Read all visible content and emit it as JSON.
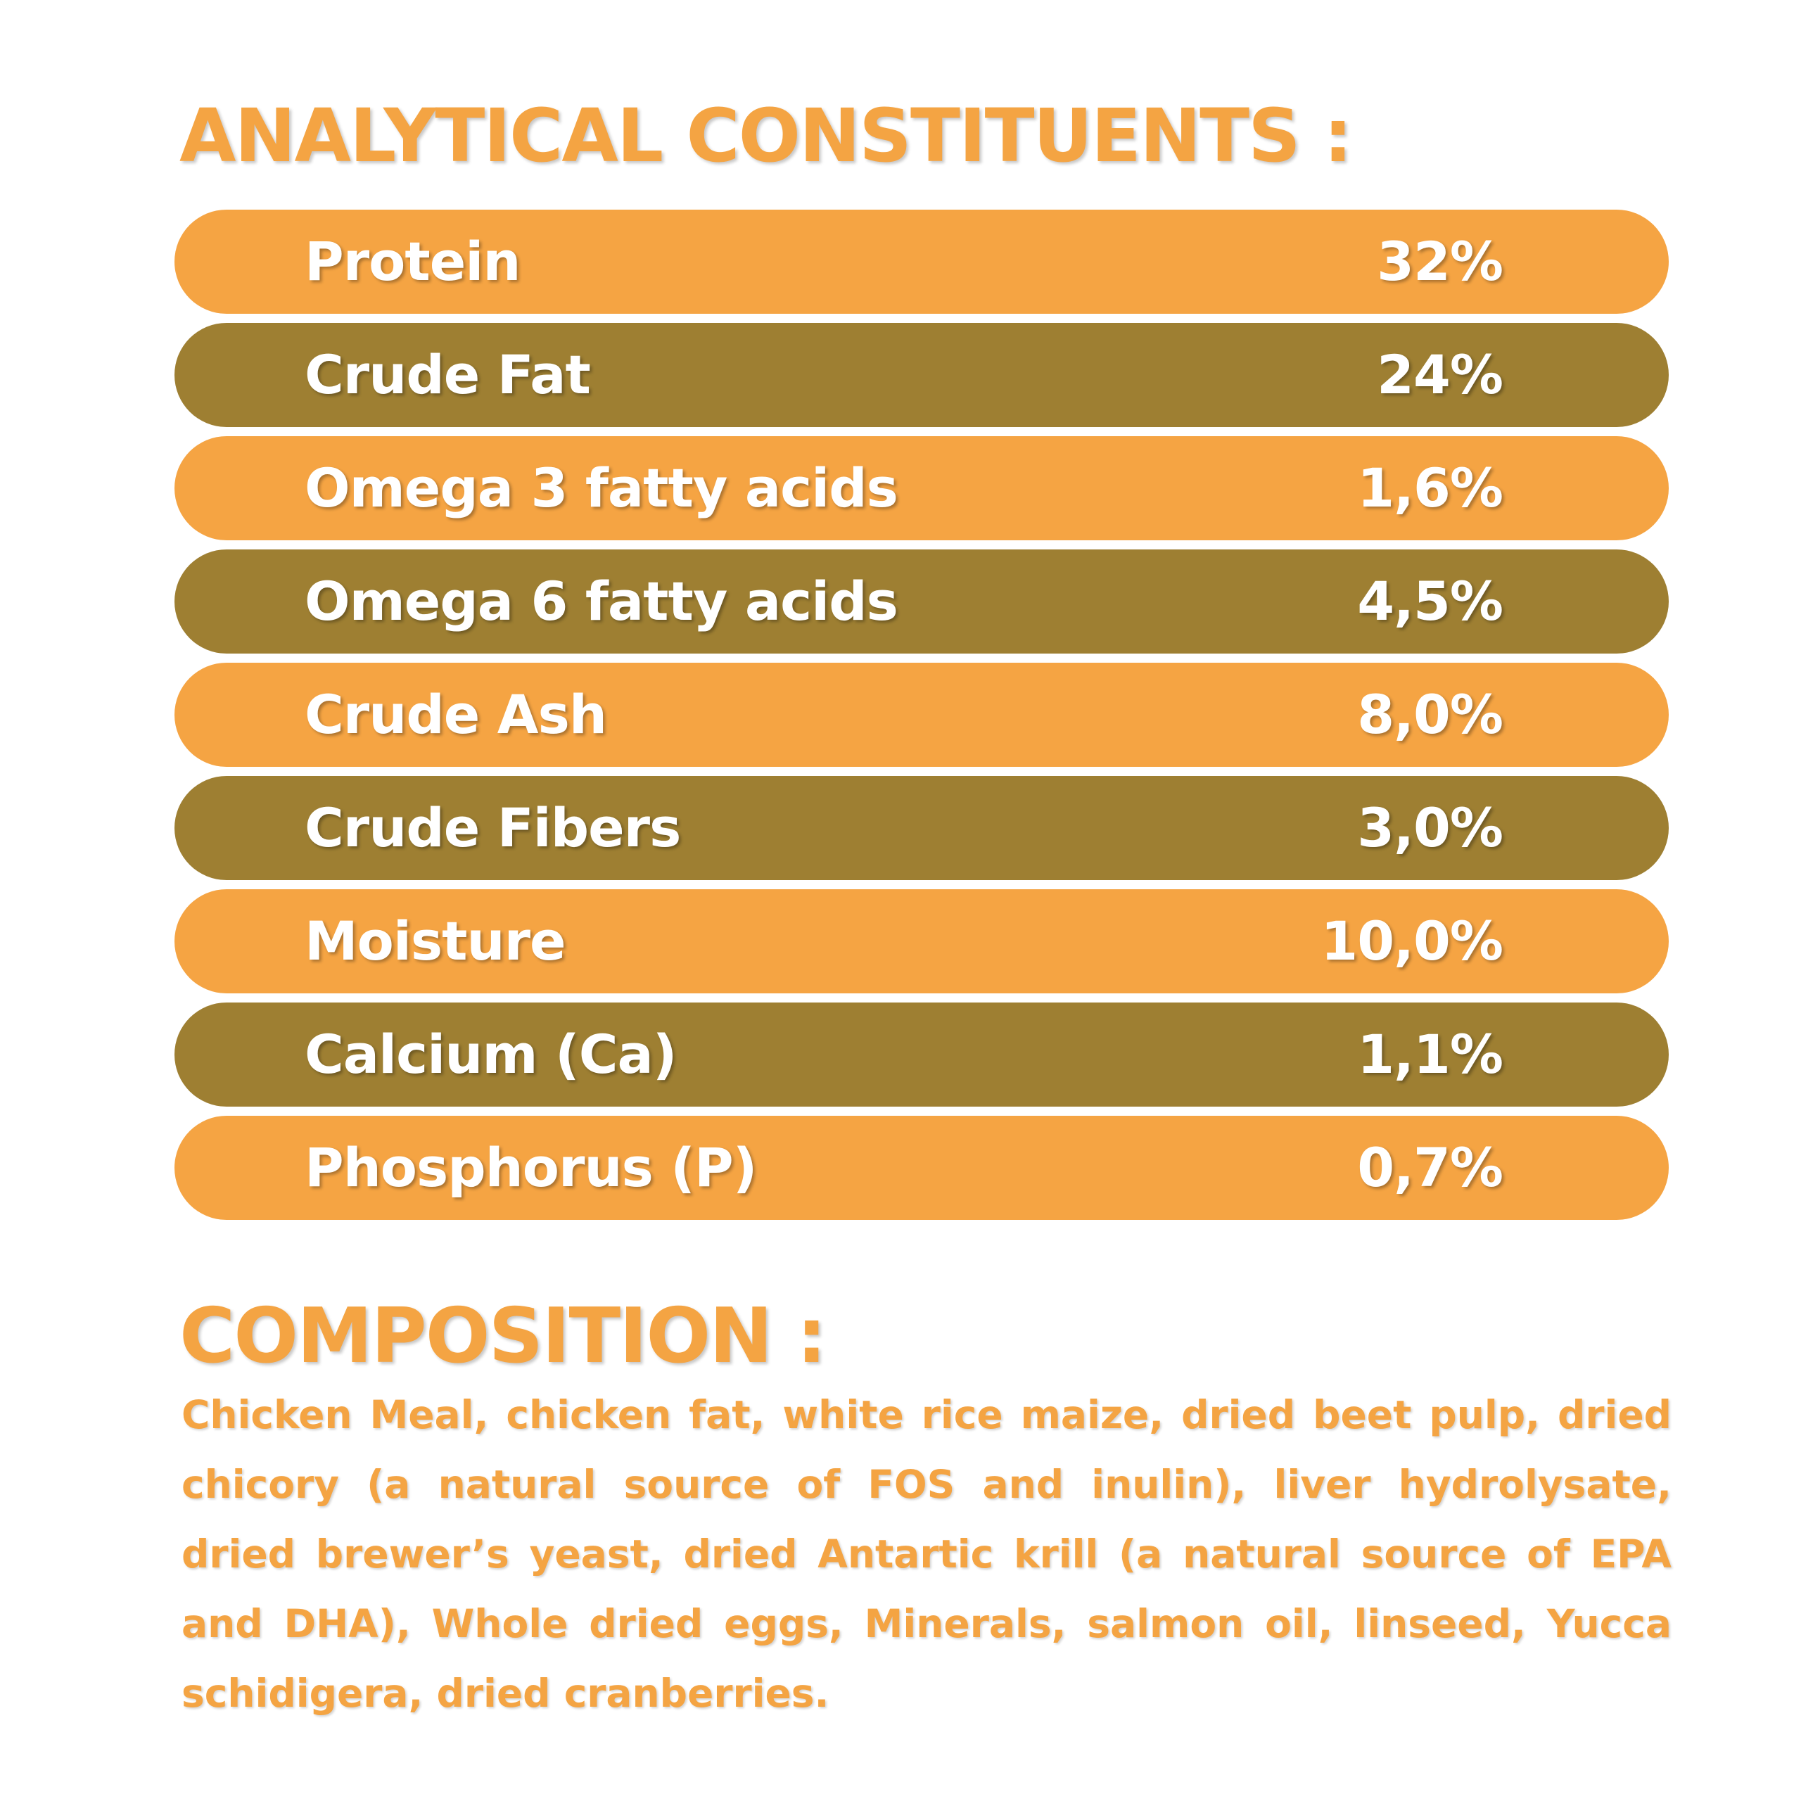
{
  "analytical": {
    "title": "ANALYTICAL CONSTITUENTS :",
    "rows": [
      {
        "label": "Protein",
        "value": "32%",
        "color": "#f5a443"
      },
      {
        "label": "Crude Fat",
        "value": "24%",
        "color": "#9e7f32"
      },
      {
        "label": "Omega 3 fatty acids",
        "value": "1,6%",
        "color": "#f5a443"
      },
      {
        "label": "Omega 6 fatty acids",
        "value": "4,5%",
        "color": "#9e7f32"
      },
      {
        "label": "Crude Ash",
        "value": "8,0%",
        "color": "#f5a443"
      },
      {
        "label": "Crude Fibers",
        "value": "3,0%",
        "color": "#9e7f32"
      },
      {
        "label": "Moisture",
        "value": "10,0%",
        "color": "#f5a443"
      },
      {
        "label": "Calcium (Ca)",
        "value": "1,1%",
        "color": "#9e7f32"
      },
      {
        "label": "Phosphorus (P)",
        "value": "0,7%",
        "color": "#f5a443"
      }
    ]
  },
  "composition": {
    "title": "COMPOSITION :",
    "text": "Chicken Meal, chicken fat, white rice maize, dried beet pulp, dried chicory (a natural source of FOS and inulin), liver hydrolysate, dried brewer’s yeast, dried Antartic krill (a natural source of EPA and DHA), Whole dried eggs, Minerals, salmon oil, linseed, Yucca schidigera, dried cranberries."
  },
  "colors": {
    "accent_orange": "#f5a443",
    "accent_olive": "#9e7f32",
    "text_on_band": "#ffffff"
  }
}
